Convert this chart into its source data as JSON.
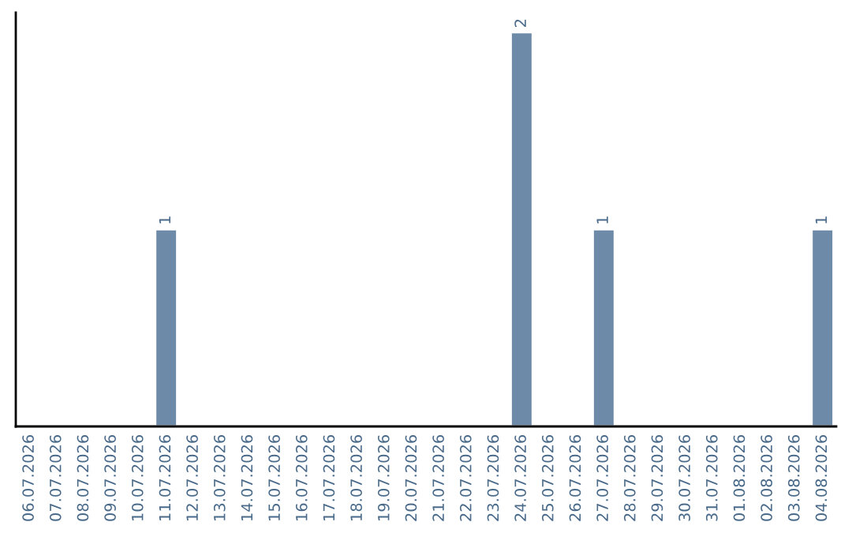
{
  "chart_data": {
    "type": "bar",
    "categories": [
      "06.07.2026",
      "07.07.2026",
      "08.07.2026",
      "09.07.2026",
      "10.07.2026",
      "11.07.2026",
      "12.07.2026",
      "13.07.2026",
      "14.07.2026",
      "15.07.2026",
      "16.07.2026",
      "17.07.2026",
      "18.07.2026",
      "19.07.2026",
      "20.07.2026",
      "21.07.2026",
      "22.07.2026",
      "23.07.2026",
      "24.07.2026",
      "25.07.2026",
      "26.07.2026",
      "27.07.2026",
      "28.07.2026",
      "29.07.2026",
      "30.07.2026",
      "31.07.2026",
      "01.08.2026",
      "02.08.2026",
      "03.08.2026",
      "04.08.2026"
    ],
    "values": [
      0,
      0,
      0,
      0,
      0,
      1,
      0,
      0,
      0,
      0,
      0,
      0,
      0,
      0,
      0,
      0,
      0,
      0,
      2,
      0,
      0,
      1,
      0,
      0,
      0,
      0,
      0,
      0,
      0,
      1
    ],
    "value_labels": [
      null,
      null,
      null,
      null,
      null,
      "1",
      null,
      null,
      null,
      null,
      null,
      null,
      null,
      null,
      null,
      null,
      null,
      null,
      "2",
      null,
      null,
      "1",
      null,
      null,
      null,
      null,
      null,
      null,
      null,
      "1"
    ],
    "color": "#6d8ba8",
    "grid": false,
    "legend": false,
    "tick_labels": "x"
  }
}
